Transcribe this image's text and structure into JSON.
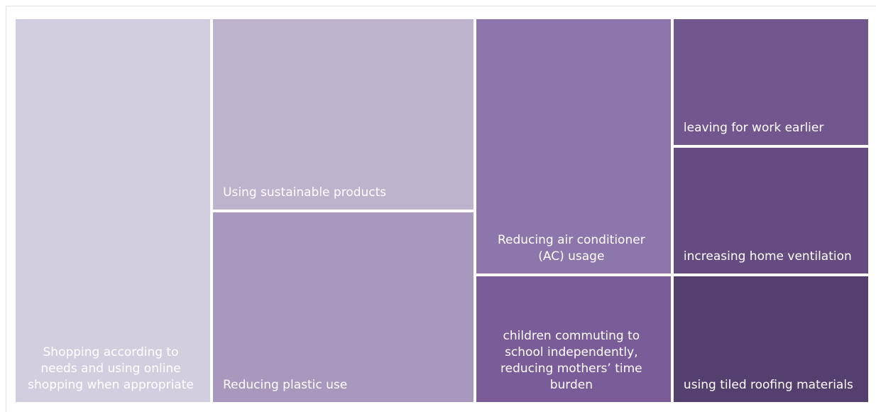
{
  "chart_data": {
    "type": "treemap",
    "categories": [
      "Shopping according to needs and using online shopping when appropriate",
      "Using sustainable products",
      "Reducing plastic use",
      "Reducing air conditioner (AC) usage",
      "children commuting to school independently, reducing mothers’ time burden",
      "leaving for work earlier",
      "increasing home ventilation",
      "using tiled roofing materials"
    ],
    "values": [
      3,
      2,
      2,
      2,
      1,
      1,
      1,
      1
    ],
    "colors": [
      "#d3cde0",
      "#bdb3cc",
      "#a898bd",
      "#8c76ab",
      "#7a5c98",
      "#72578f",
      "#654b80",
      "#553f6e"
    ]
  }
}
